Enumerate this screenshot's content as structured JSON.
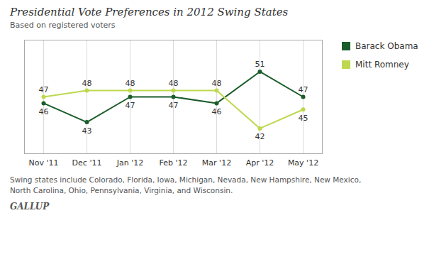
{
  "chart_data": {
    "type": "line",
    "title": "Presidential Vote Preferences in 2012 Swing States",
    "subtitle": "Based on registered voters",
    "footnote": "Swing states include Colorado, Florida, Iowa, Michigan, Nevada, New Hampshire, New Mexico,\nNorth Carolina, Ohio, Pennsylvania, Virginia, and Wisconsin.",
    "source": "GALLUP",
    "categories": [
      "Nov '11",
      "Dec '11",
      "Jan '12",
      "Feb '12",
      "Mar '12",
      "Apr '12",
      "May '12"
    ],
    "series": [
      {
        "name": "Barack Obama",
        "color": "#1a5c2a",
        "values": [
          46,
          43,
          47,
          47,
          46,
          51,
          47
        ]
      },
      {
        "name": "Mitt Romney",
        "color": "#bdd84e",
        "values": [
          47,
          48,
          48,
          48,
          48,
          42,
          45
        ]
      }
    ],
    "ylim": [
      38,
      56
    ],
    "tick_labels": "x",
    "grid": true,
    "data_labels": true,
    "legend": "right",
    "marker": "circle"
  }
}
